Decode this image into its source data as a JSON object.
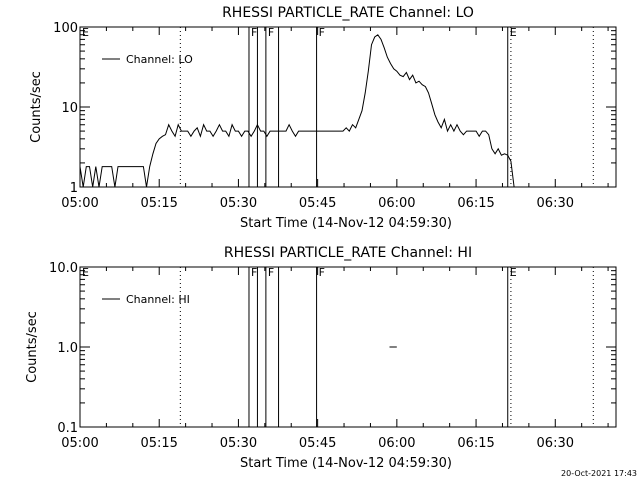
{
  "footer": {
    "timestamp": "20-Oct-2021 17:43"
  },
  "chart_data": [
    {
      "type": "line",
      "title": "RHESSI PARTICLE_RATE Channel: LO",
      "xlabel": "Start Time (14-Nov-12 04:59:30)",
      "ylabel": "Counts/sec",
      "yscale": "log",
      "ylim": [
        1,
        100
      ],
      "xlim": [
        "05:00",
        "06:41"
      ],
      "xtick_labels": [
        "05:00",
        "05:15",
        "05:30",
        "05:45",
        "06:00",
        "06:15",
        "06:30"
      ],
      "ytick_labels": [
        "1",
        "10",
        "100"
      ],
      "legend": {
        "entries": [
          "Channel: LO"
        ],
        "placement": "top-left"
      },
      "series": [
        {
          "name": "Channel: LO",
          "x_minutes_after_0500": [
            0,
            0.6,
            1.2,
            1.8,
            2.4,
            3.0,
            3.6,
            4.2,
            4.8,
            5.4,
            6.0,
            6.6,
            7.2,
            7.8,
            8.4,
            9.0,
            9.6,
            10.2,
            10.8,
            11.4,
            12.0,
            12.6,
            13.2,
            13.8,
            14.4,
            15.0,
            15.6,
            16.2,
            16.8,
            17.4,
            18.0,
            18.6,
            19.2,
            19.8,
            20.4,
            21.0,
            21.6,
            22.2,
            22.8,
            23.4,
            24.0,
            24.6,
            25.2,
            25.8,
            26.4,
            27.0,
            27.6,
            28.2,
            28.8,
            29.4,
            30.0,
            30.6,
            31.2,
            31.8,
            32.4,
            33.0,
            33.6,
            34.2,
            34.8,
            35.4,
            36.0,
            36.6,
            37.2,
            37.8,
            38.4,
            39.0,
            39.6,
            40.2,
            40.8,
            41.4,
            42.0,
            42.6,
            43.2,
            43.8,
            44.4,
            45.0,
            45.6,
            46.2,
            46.8,
            47.4,
            48.0,
            48.6,
            49.2,
            49.8,
            50.4,
            51.0,
            51.6,
            52.2,
            52.8,
            53.4,
            54.0,
            54.6,
            55.2,
            55.8,
            56.4,
            57.0,
            57.6,
            58.2,
            58.8,
            59.4,
            60.0,
            60.6,
            61.2,
            61.8,
            62.4,
            63.0,
            63.6,
            64.2,
            64.8,
            65.4,
            66.0,
            66.6,
            67.2,
            67.8,
            68.4,
            69.0,
            69.6,
            70.2,
            70.8,
            71.4,
            72.0,
            72.6,
            73.2,
            73.8,
            74.4,
            75.0,
            75.6,
            76.2,
            76.8,
            77.4,
            78.0,
            78.6,
            79.2,
            79.8,
            80.4,
            81.0,
            81.6,
            82.2,
            82.8,
            83.4
          ],
          "values": [
            1.8,
            1,
            1.8,
            1.8,
            1,
            1.8,
            1,
            1.8,
            1.8,
            1.8,
            1.8,
            1,
            1.8,
            1.8,
            1.8,
            1.8,
            1.8,
            1.8,
            1.8,
            1.8,
            1.8,
            1,
            1.8,
            2.6,
            3.5,
            4,
            4.3,
            4.5,
            6,
            5,
            4.3,
            6,
            5,
            5,
            5,
            4.3,
            5,
            5.5,
            4.3,
            6,
            5,
            5,
            4.3,
            5,
            6,
            5,
            5,
            4.3,
            6,
            5,
            5,
            4.3,
            5,
            5,
            4.3,
            5,
            6,
            5,
            5,
            4.3,
            5,
            5,
            5,
            5,
            5,
            5,
            6,
            5,
            4.3,
            5,
            5,
            5,
            5,
            5,
            5,
            5,
            5,
            5,
            5,
            5,
            5,
            5,
            5,
            5,
            5.5,
            5,
            6,
            5.5,
            7,
            9,
            15,
            28,
            60,
            75,
            80,
            70,
            55,
            42,
            35,
            30,
            28,
            25,
            24,
            27,
            22,
            25,
            20,
            21,
            19,
            18,
            15,
            11,
            8,
            6.5,
            5.5,
            7,
            5,
            6,
            5,
            6,
            5,
            4.5,
            5,
            5,
            5,
            5,
            4.3,
            5,
            5,
            4.5,
            3,
            2.6,
            3,
            2.5,
            2.6,
            2.5,
            2.1,
            1,
            1
          ]
        }
      ],
      "markers": {
        "dotted_lines_minutes": [
          19,
          81.6,
          97.2
        ],
        "solid_lines": [
          {
            "min": 32.0,
            "label": "F"
          },
          {
            "min": 33.6,
            "label": ""
          },
          {
            "min": 35.2,
            "label": "F"
          },
          {
            "min": 37.6,
            "label": ""
          },
          {
            "min": 44.8,
            "label": "F"
          },
          {
            "min": 81.0,
            "label": "E"
          }
        ],
        "left_label": "E"
      }
    },
    {
      "type": "line",
      "title": "RHESSI PARTICLE_RATE Channel: HI",
      "xlabel": "Start Time (14-Nov-12 04:59:30)",
      "ylabel": "Counts/sec",
      "yscale": "log",
      "ylim": [
        0.1,
        10
      ],
      "xlim": [
        "05:00",
        "06:41"
      ],
      "xtick_labels": [
        "05:00",
        "05:15",
        "05:30",
        "05:45",
        "06:00",
        "06:15",
        "06:30"
      ],
      "ytick_labels": [
        "0.1",
        "1.0",
        "10.0"
      ],
      "legend": {
        "entries": [
          "Channel: HI"
        ],
        "placement": "top-left"
      },
      "series": [
        {
          "name": "Channel: HI",
          "x_minutes_after_0500": [
            58.6,
            60.0
          ],
          "values": [
            1.0,
            1.0
          ]
        }
      ],
      "markers": {
        "dotted_lines_minutes": [
          19,
          81.6,
          97.2
        ],
        "solid_lines": [
          {
            "min": 32.0,
            "label": "F"
          },
          {
            "min": 33.6,
            "label": ""
          },
          {
            "min": 35.2,
            "label": "F"
          },
          {
            "min": 37.6,
            "label": ""
          },
          {
            "min": 44.8,
            "label": "F"
          },
          {
            "min": 81.0,
            "label": "E"
          }
        ],
        "left_label": "E"
      }
    }
  ]
}
